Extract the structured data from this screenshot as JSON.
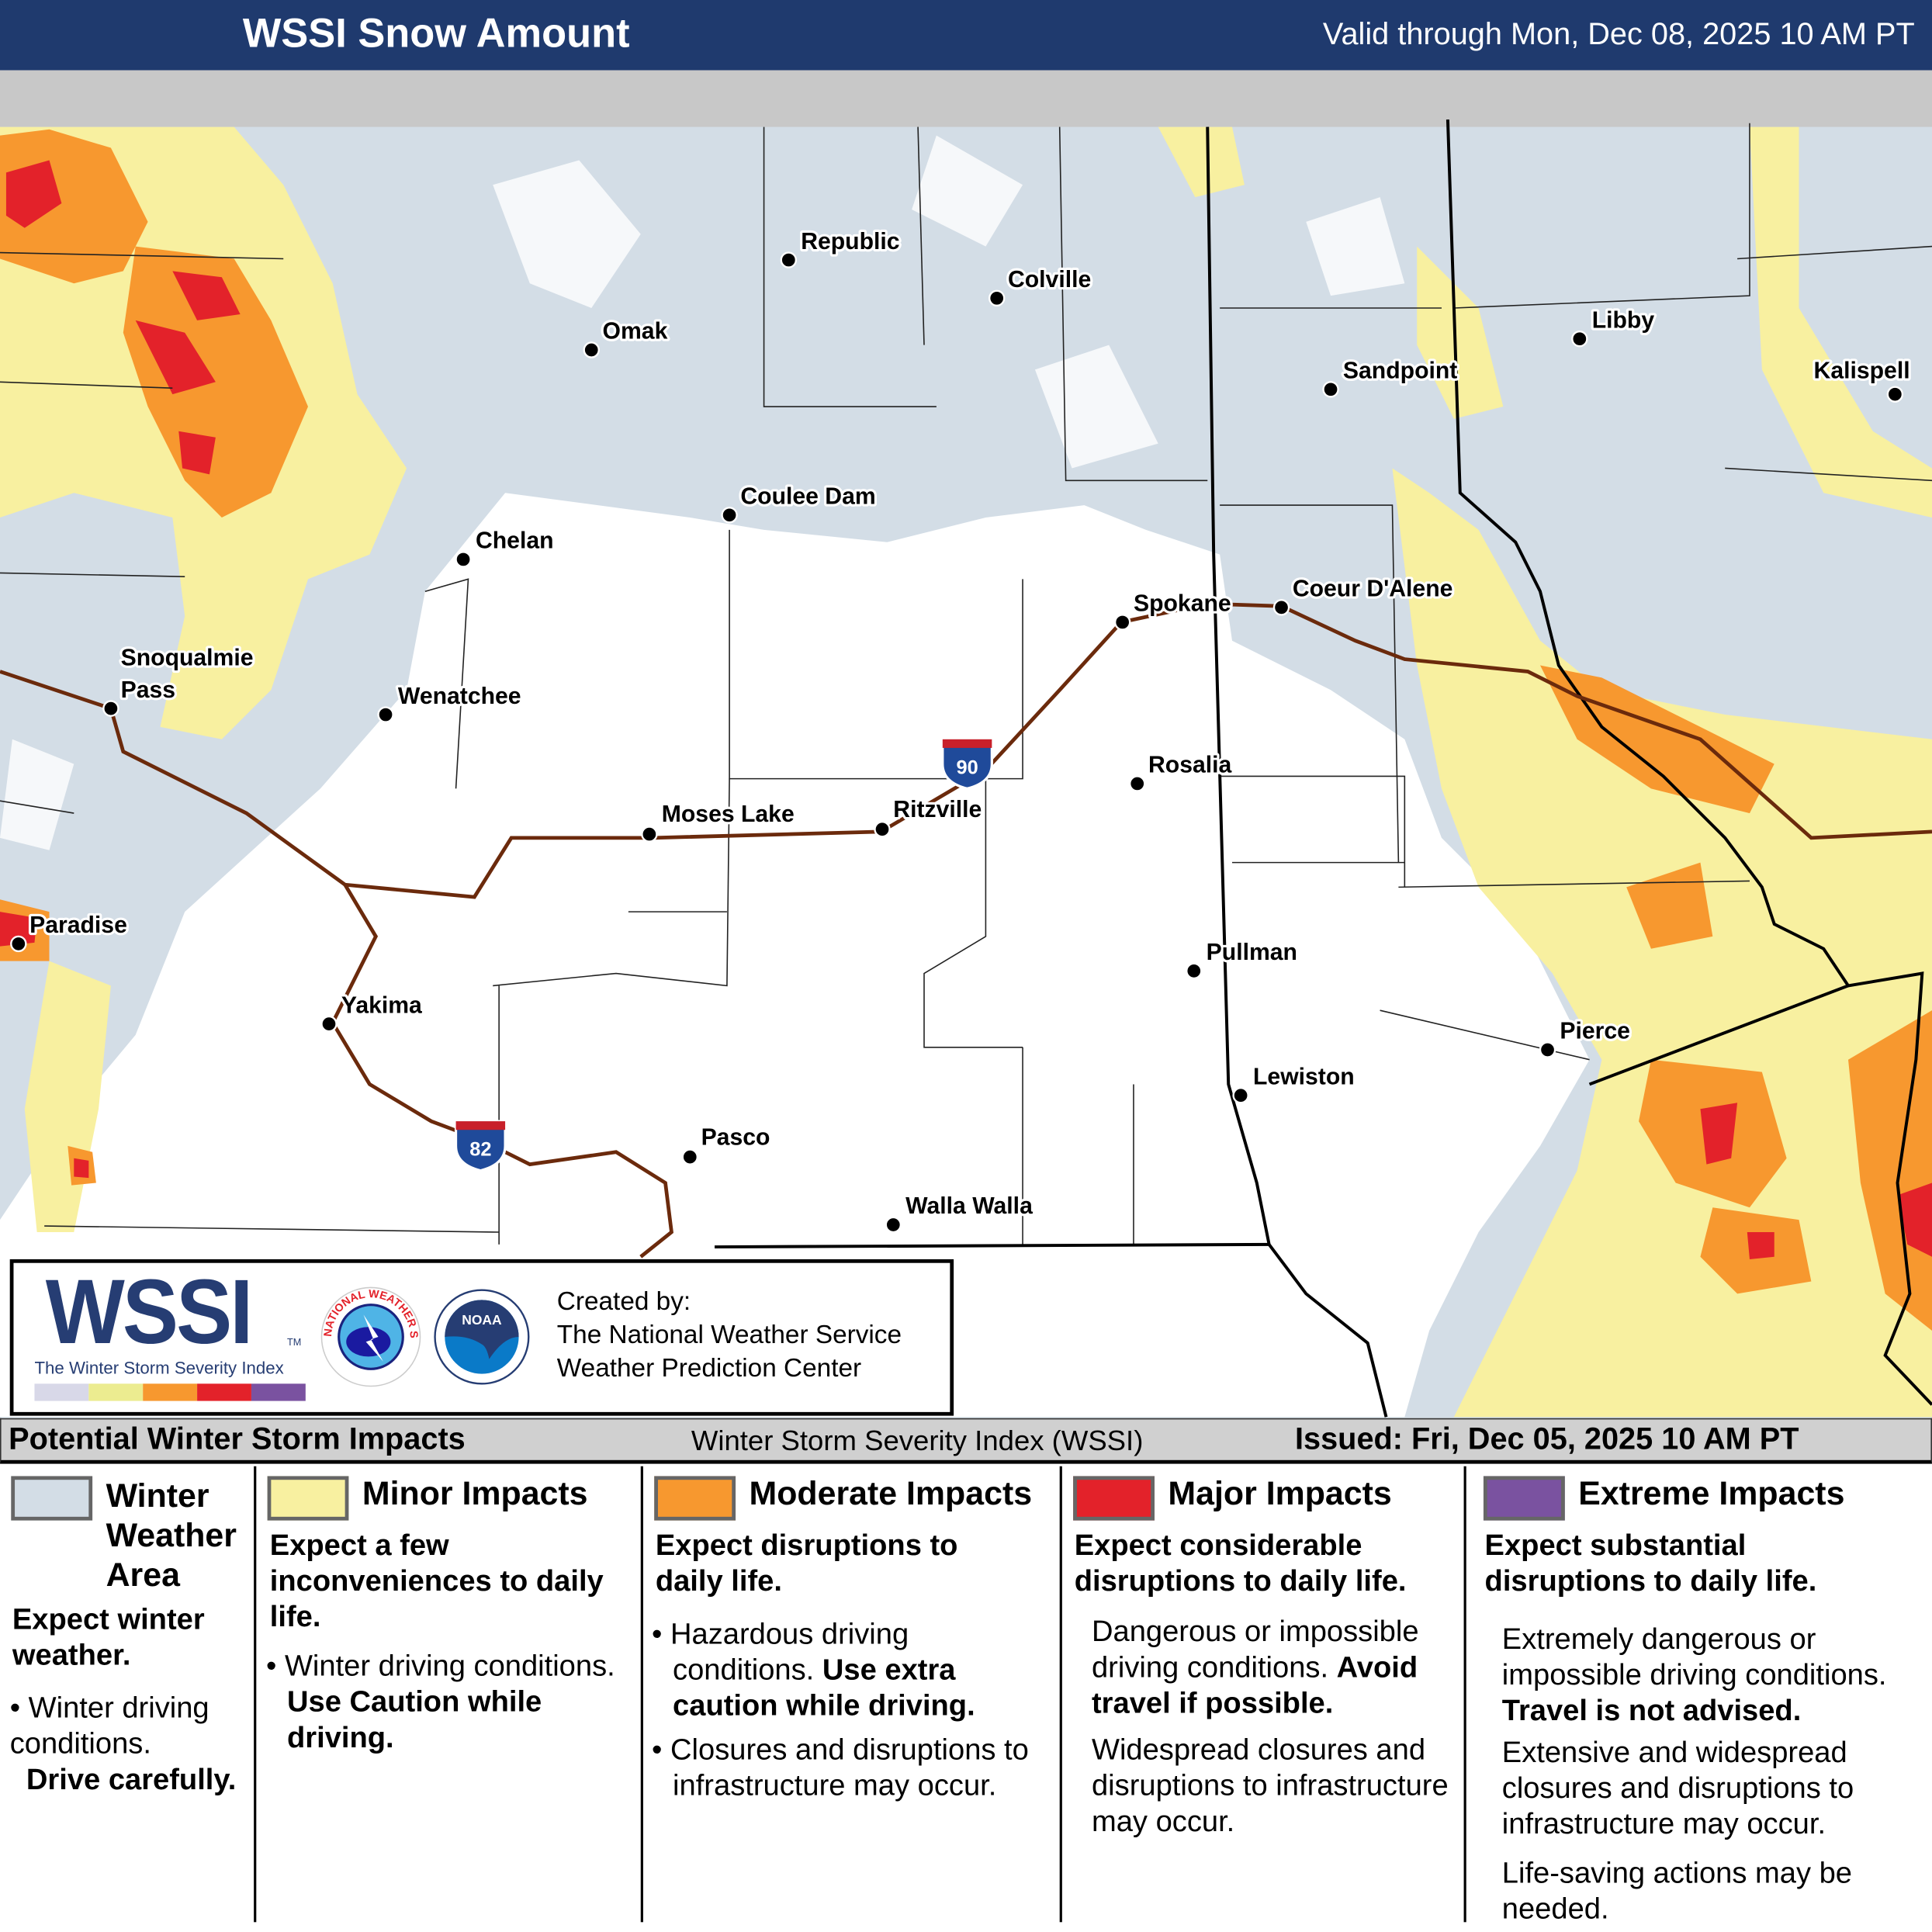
{
  "header": {
    "title": "WSSI Snow Amount",
    "valid": "Valid through Mon, Dec 08, 2025 10 AM PT"
  },
  "map": {
    "colors": {
      "winter_weather": "#d3dde6",
      "minor": "#f8f0a0",
      "moderate": "#f7982f",
      "major": "#e3222a",
      "extreme": "#7a52a0",
      "interstate": "#6b2a0c"
    },
    "interstates": [
      {
        "number": "90"
      },
      {
        "number": "82"
      }
    ],
    "cities": [
      "Republic",
      "Colville",
      "Omak",
      "Sandpoint",
      "Libby",
      "Kalispell",
      "Coulee Dam",
      "Chelan",
      "Spokane",
      "Coeur D'Alene",
      "Snoqualmie",
      "Pass",
      "Wenatchee",
      "Rosalia",
      "Moses Lake",
      "Ritzville",
      "Paradise",
      "Pullman",
      "Yakima",
      "Pierce",
      "Lewiston",
      "Pasco",
      "Walla Walla"
    ]
  },
  "logo": {
    "brand": "WSSI",
    "tm": "TM",
    "subtitle": "The Winter Storm Severity Index",
    "nws": "NATIONAL WEATHER SERVICE",
    "noaa": "NOAA",
    "credit": [
      "Created by:",
      "The National Weather Service",
      "Weather Prediction Center"
    ]
  },
  "bar": {
    "left": "Potential Winter Storm Impacts",
    "center": "Winter Storm Severity Index (WSSI)",
    "issued": "Issued: Fri, Dec 05, 2025 10 AM PT"
  },
  "legend": [
    {
      "title": [
        "Winter",
        "Weather",
        "Area"
      ],
      "summary": "Expect winter weather.",
      "bullets": [
        "Winter driving conditions."
      ],
      "bold": "Drive carefully."
    },
    {
      "title": "Minor Impacts",
      "summary": "Expect a few inconveniences to daily life.",
      "bullet": "Winter driving conditions.",
      "bold": "Use Caution while driving."
    },
    {
      "title": "Moderate Impacts",
      "summary": "Expect disruptions to daily life.",
      "bullet1": "Hazardous driving conditions.",
      "bold": "Use extra caution while driving.",
      "bullet2": "Closures and disruptions to infrastructure may occur."
    },
    {
      "title": "Major Impacts",
      "summary": "Expect considerable disruptions to daily life.",
      "p1": "Dangerous or impossible driving conditions.",
      "bold": "Avoid travel if possible.",
      "p2": "Widespread closures and disruptions to infrastructure may occur."
    },
    {
      "title": "Extreme Impacts",
      "summary": "Expect substantial disruptions to daily life.",
      "p1": "Extremely dangerous or impossible driving conditions.",
      "bold": "Travel is not advised.",
      "p2": "Extensive and widespread closures and disruptions to infrastructure may occur.",
      "p3": "Life-saving actions may be needed."
    }
  ]
}
